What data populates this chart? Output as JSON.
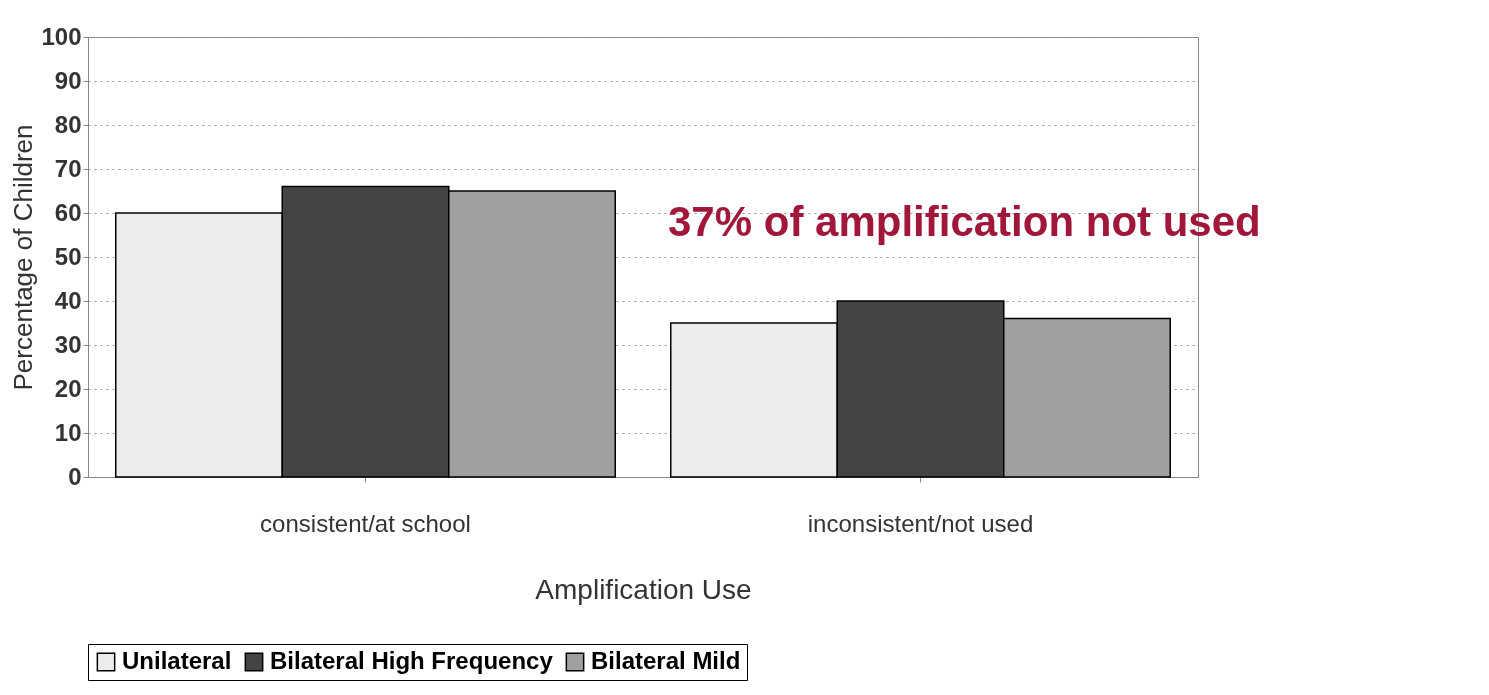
{
  "chart_data": {
    "type": "bar",
    "xlabel": "Amplification Use",
    "ylabel": "Percentage of Children",
    "categories": [
      "consistent/at school",
      "inconsistent/not used"
    ],
    "series": [
      {
        "name": "Unilateral",
        "color": "#ececec",
        "values": [
          60,
          35
        ]
      },
      {
        "name": "Bilateral High Frequency",
        "color": "#444444",
        "values": [
          66,
          40
        ]
      },
      {
        "name": "Bilateral Mild",
        "color": "#a0a0a0",
        "values": [
          65,
          36
        ]
      }
    ],
    "ylim": [
      0,
      100
    ],
    "yticks": [
      0,
      10,
      20,
      30,
      40,
      50,
      60,
      70,
      80,
      90,
      100
    ],
    "grid": "y",
    "legend": "bottom",
    "annotations": [
      "37% of amplification not used"
    ]
  }
}
